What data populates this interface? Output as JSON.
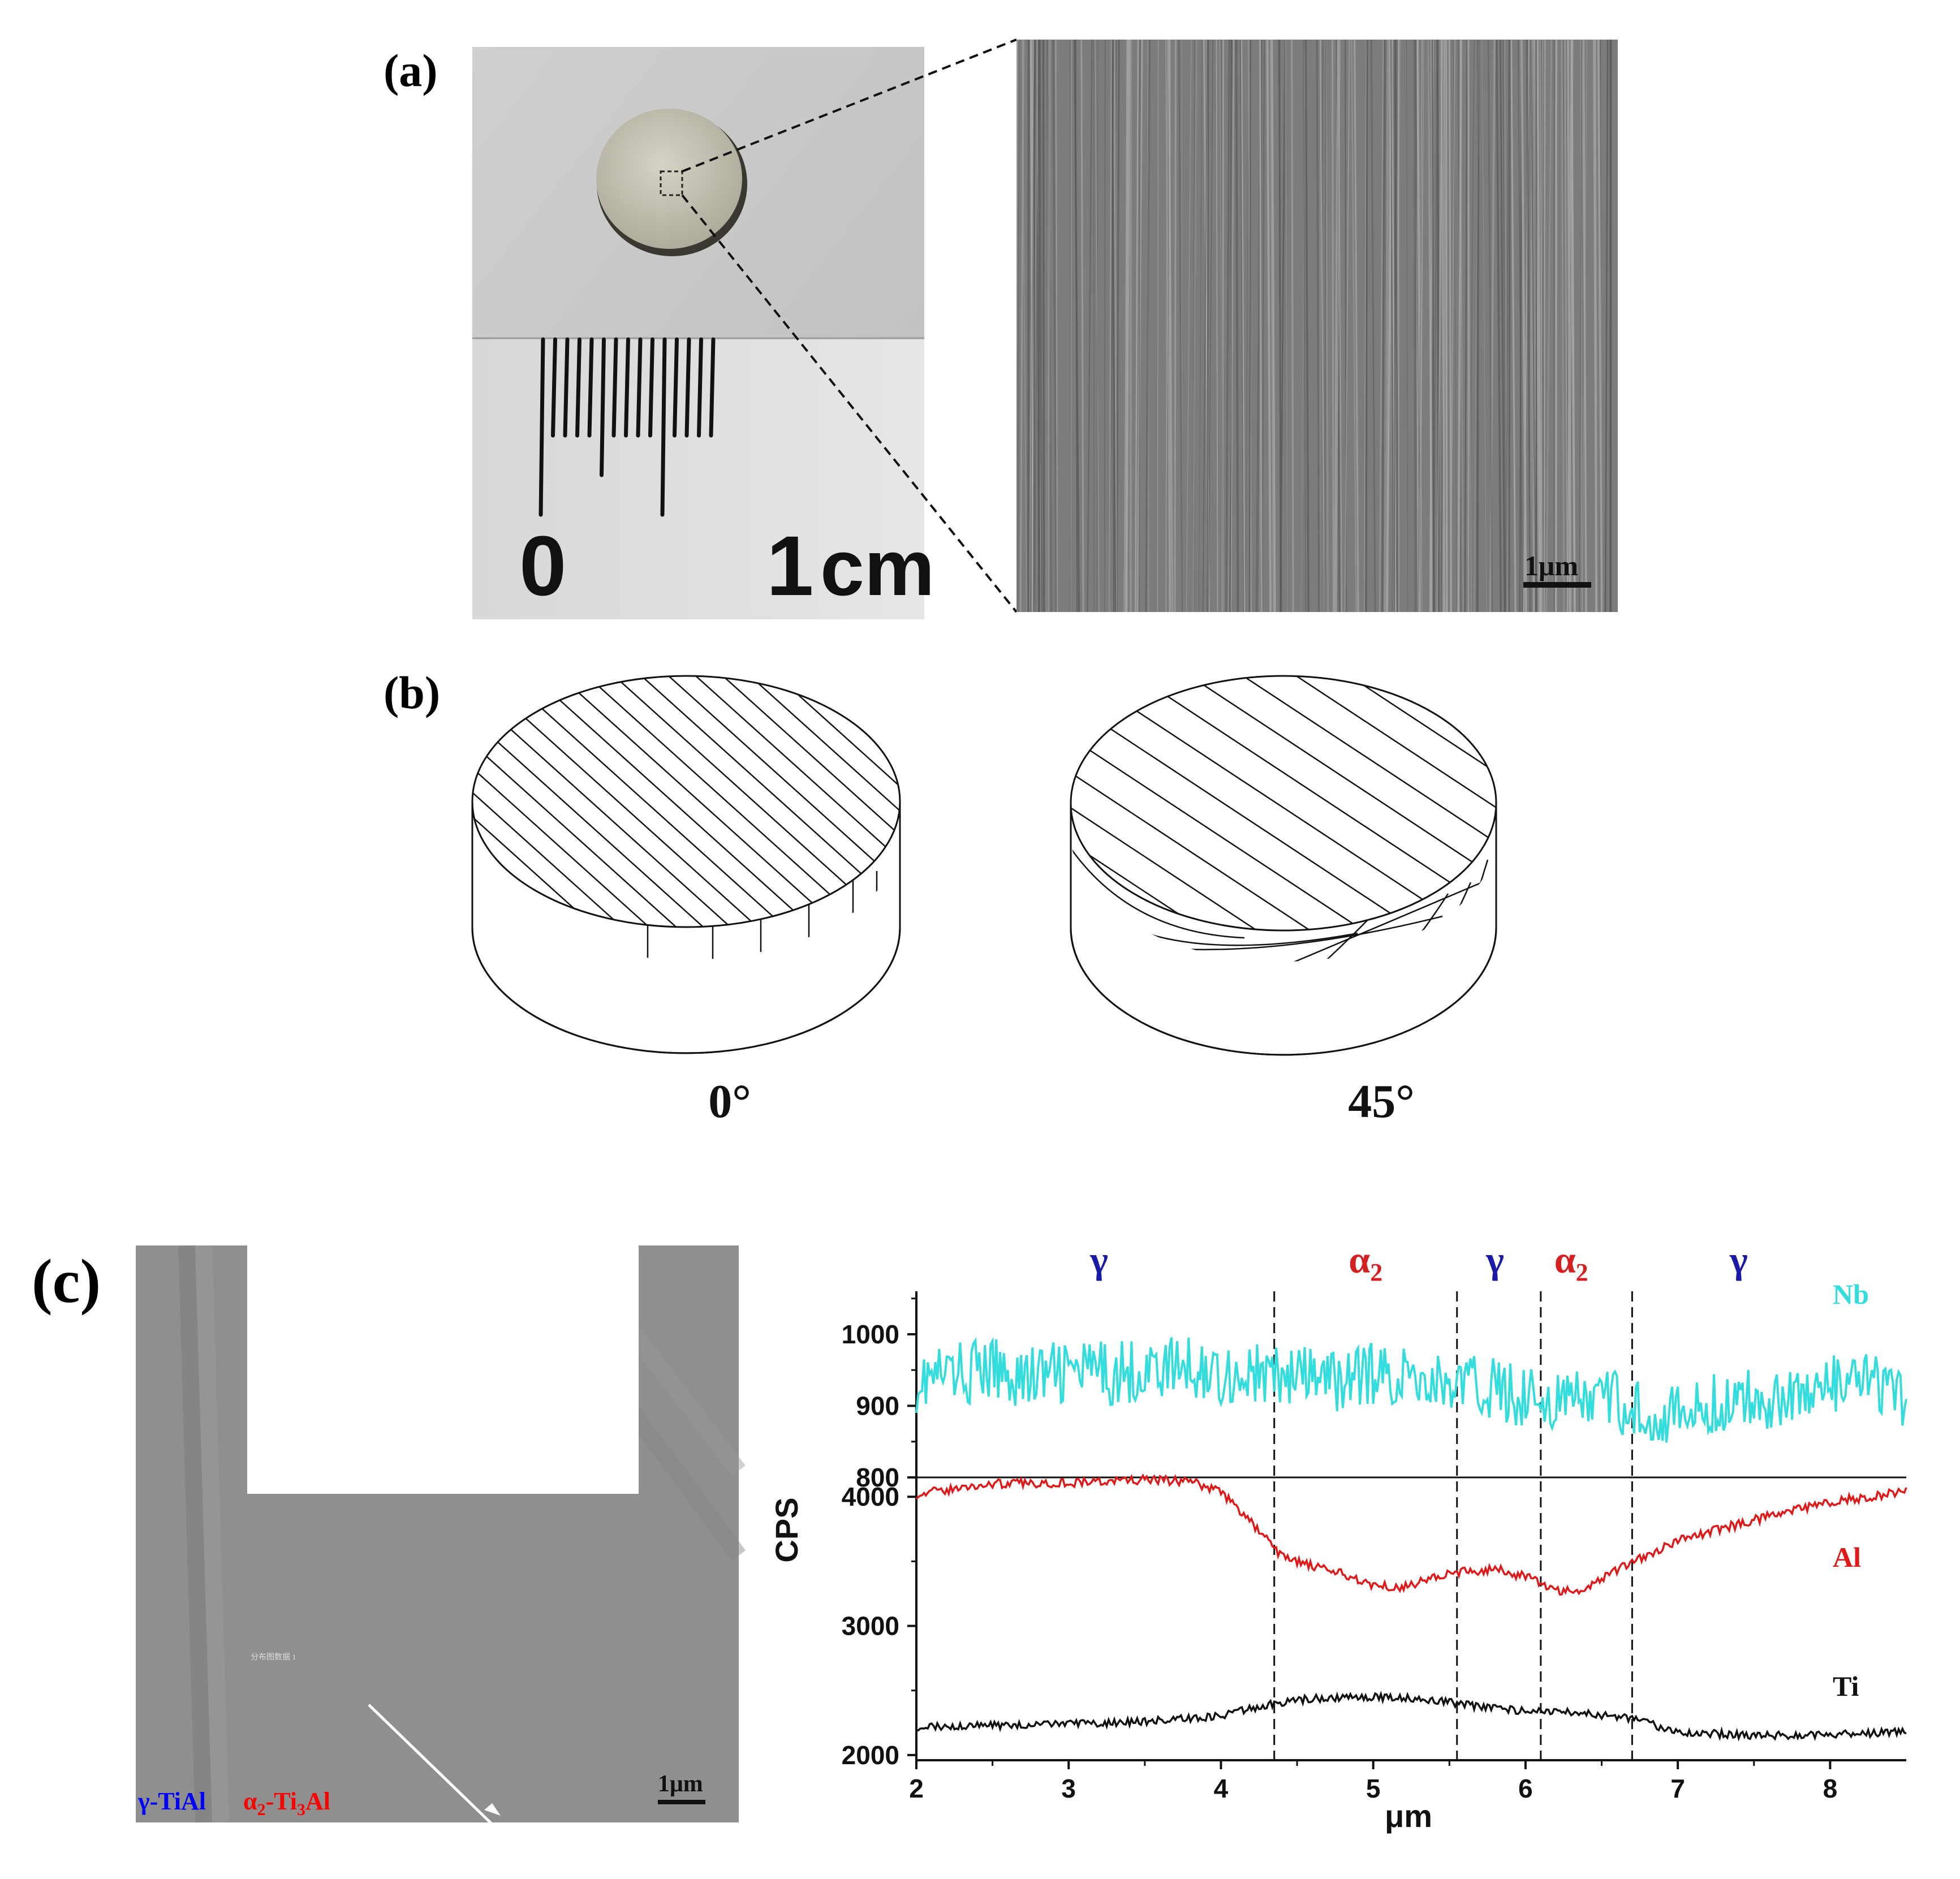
{
  "panels": {
    "a": {
      "label": "(a)",
      "ruler_labels": [
        "0",
        "1",
        "cm"
      ],
      "sem_scale_bar": "1μm"
    },
    "b": {
      "label": "(b)",
      "angles": [
        "0°",
        "45°"
      ]
    },
    "c": {
      "label": "(c)",
      "map_tiny_caption": "分布图数据 1",
      "map_scale_bar": "1μm",
      "legend_gamma": "γ-TiAl",
      "legend_alpha_prefix": "α",
      "legend_alpha_sub": "2",
      "legend_alpha_suffix": "-Ti",
      "legend_alpha_sub2": "3",
      "legend_alpha_end": "Al",
      "colors": {
        "gamma": "#0000ff",
        "alpha2": "#ff0000"
      }
    }
  },
  "chart_data": {
    "type": "line",
    "xlabel": "μm",
    "ylabel": "CPS",
    "xlim": [
      2,
      8.5
    ],
    "x_ticks": [
      "2",
      "3",
      "4",
      "5",
      "6",
      "7",
      "8"
    ],
    "upper_axis": {
      "ylim": [
        800,
        1060
      ],
      "ticks": [
        "800",
        "900",
        "1000"
      ]
    },
    "lower_axis": {
      "ylim": [
        1960,
        4150
      ],
      "ticks": [
        "2000",
        "3000",
        "4000"
      ]
    },
    "phase_boundaries": [
      4.35,
      5.55,
      6.1,
      6.7
    ],
    "phase_labels": [
      {
        "text": "γ",
        "sub": "",
        "x": 3.2,
        "color": "#1a1aa8"
      },
      {
        "text": "α",
        "sub": "2",
        "x": 4.95,
        "color": "#d42020"
      },
      {
        "text": "γ",
        "sub": "",
        "x": 5.8,
        "color": "#1a1aa8"
      },
      {
        "text": "α",
        "sub": "2",
        "x": 6.3,
        "color": "#d42020"
      },
      {
        "text": "γ",
        "sub": "",
        "x": 7.4,
        "color": "#1a1aa8"
      }
    ],
    "series": [
      {
        "name": "Nb",
        "axis": "upper",
        "color": "#33dddd",
        "x": [
          2.0,
          2.25,
          2.5,
          2.75,
          3.0,
          3.25,
          3.5,
          3.75,
          4.0,
          4.25,
          4.5,
          4.75,
          5.0,
          5.25,
          5.5,
          5.75,
          6.0,
          6.25,
          6.5,
          6.75,
          7.0,
          7.25,
          7.5,
          7.75,
          8.0,
          8.25,
          8.5
        ],
        "values": [
          935,
          945,
          950,
          940,
          948,
          945,
          950,
          955,
          945,
          942,
          940,
          935,
          945,
          940,
          930,
          925,
          915,
          905,
          910,
          895,
          885,
          900,
          910,
          915,
          925,
          935,
          900
        ]
      },
      {
        "name": "Al",
        "axis": "lower",
        "color": "#e01818",
        "x": [
          2.0,
          2.5,
          3.0,
          3.5,
          3.8,
          4.0,
          4.2,
          4.4,
          4.6,
          4.8,
          5.0,
          5.2,
          5.4,
          5.6,
          5.8,
          6.0,
          6.2,
          6.35,
          6.5,
          6.7,
          7.0,
          7.5,
          8.0,
          8.5
        ],
        "values": [
          4020,
          4100,
          4110,
          4130,
          4120,
          4040,
          3800,
          3540,
          3460,
          3400,
          3320,
          3300,
          3380,
          3420,
          3440,
          3380,
          3280,
          3260,
          3370,
          3500,
          3660,
          3820,
          3960,
          4040
        ]
      },
      {
        "name": "Ti",
        "axis": "lower",
        "color": "#111111",
        "x": [
          2.0,
          2.5,
          3.0,
          3.5,
          4.0,
          4.3,
          4.6,
          5.0,
          5.3,
          5.6,
          6.0,
          6.3,
          6.7,
          7.0,
          7.5,
          8.0,
          8.5
        ],
        "values": [
          2220,
          2230,
          2240,
          2260,
          2300,
          2390,
          2440,
          2450,
          2440,
          2390,
          2340,
          2330,
          2280,
          2180,
          2150,
          2160,
          2180
        ]
      }
    ]
  }
}
